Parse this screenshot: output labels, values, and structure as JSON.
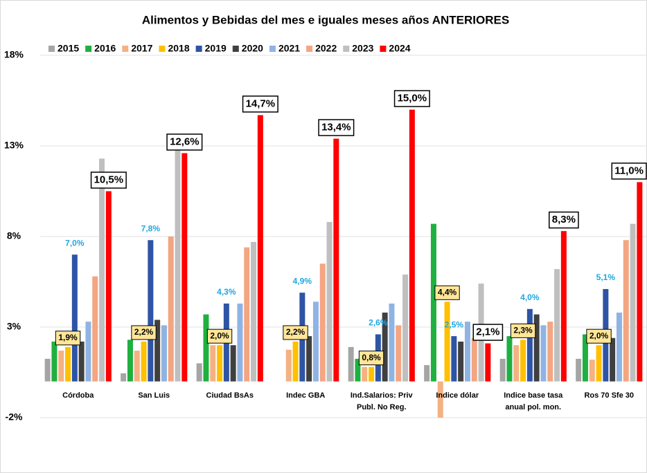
{
  "chart_data": {
    "type": "bar",
    "title": "Alimentos y Bebidas del mes e iguales meses años ANTERIORES",
    "categories": [
      "Córdoba",
      "San Luis",
      "Ciudad BsAs",
      "Indec  GBA",
      "Ind.Salarios: Priv\nPubl. No Reg.",
      "Indice dólar",
      "Indice base tasa\nanual pol. mon.",
      "Ros 70 Sfe 30"
    ],
    "series": [
      {
        "name": "2015",
        "color": "#a5a5a5",
        "values": [
          1.25,
          0.45,
          1.0,
          null,
          1.9,
          0.9,
          1.25,
          1.25
        ]
      },
      {
        "name": "2016",
        "color": "#1fb040",
        "values": [
          2.2,
          2.3,
          3.7,
          null,
          1.25,
          8.7,
          2.5,
          2.6
        ]
      },
      {
        "name": "2017",
        "color": "#f4b183",
        "values": [
          1.7,
          1.7,
          2.0,
          1.75,
          0.8,
          -2.0,
          2.0,
          1.2
        ]
      },
      {
        "name": "2018",
        "color": "#ffc000",
        "values": [
          1.9,
          2.2,
          2.0,
          2.2,
          0.8,
          4.4,
          2.3,
          2.0
        ],
        "value_labels": [
          "1,9%",
          "2,2%",
          "2,0%",
          "2,2%",
          "0,8%",
          "4,4%",
          "2,3%",
          "2,0%"
        ]
      },
      {
        "name": "2019",
        "color": "#2e54a6",
        "values": [
          7.0,
          7.8,
          4.3,
          4.9,
          2.6,
          2.5,
          4.0,
          5.1
        ],
        "value_labels": [
          "7,0%",
          "7,8%",
          "4,3%",
          "4,9%",
          "2,6%",
          "2,5%",
          "4,0%",
          "5,1%"
        ]
      },
      {
        "name": "2020",
        "color": "#404040",
        "values": [
          2.2,
          3.4,
          2.0,
          2.5,
          3.8,
          2.2,
          3.7,
          2.4
        ]
      },
      {
        "name": "2021",
        "color": "#8fb4e3",
        "values": [
          3.3,
          3.1,
          4.3,
          4.4,
          4.3,
          3.3,
          3.1,
          3.8
        ]
      },
      {
        "name": "2022",
        "color": "#f4a582",
        "values": [
          5.8,
          8.0,
          7.4,
          6.5,
          3.1,
          2.4,
          3.3,
          7.8
        ]
      },
      {
        "name": "2023",
        "color": "#bfbfbf",
        "values": [
          12.3,
          13.5,
          7.7,
          8.8,
          5.9,
          5.4,
          6.2,
          8.7
        ]
      },
      {
        "name": "2024",
        "color": "#ff0000",
        "values": [
          10.5,
          12.6,
          14.7,
          13.4,
          15.0,
          2.1,
          8.3,
          11.0
        ],
        "value_labels": [
          "10,5%",
          "12,6%",
          "14,7%",
          "13,4%",
          "15,0%",
          "2,1%",
          "8,3%",
          "11,0%"
        ]
      }
    ],
    "ylim": [
      -5,
      19
    ],
    "yticks": [
      {
        "value": -2,
        "label": "-2%"
      },
      {
        "value": 3,
        "label": "3%"
      },
      {
        "value": 8,
        "label": "8%"
      },
      {
        "value": 13,
        "label": "13%"
      },
      {
        "value": 18,
        "label": "18%"
      }
    ],
    "grid": true,
    "legend": "top"
  }
}
